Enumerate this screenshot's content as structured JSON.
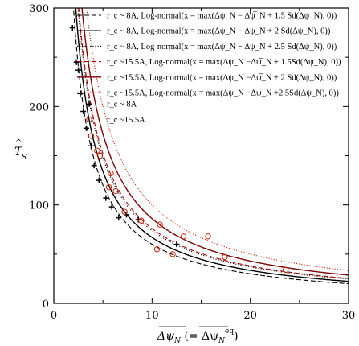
{
  "chart_data": {
    "type": "scatter",
    "xlabel": "Δψ̅_N (= Δψ̅_N^eq)",
    "ylabel": "T̂_S",
    "xlim": [
      0,
      30
    ],
    "ylim": [
      0,
      300
    ],
    "x_ticks": [
      "0",
      "10",
      "20",
      "30"
    ],
    "y_ticks": [
      "0",
      "100",
      "200",
      "300"
    ],
    "grid": false,
    "legend_position": "top-right",
    "curves": [
      {
        "name": "r_c ~ 8A, Log-normal(x = max(Δψ_N − Δψ̅_N + 1.5 Sd(Δψ_N), 0))",
        "color": "#000000",
        "dash": "dash",
        "k": 600
      },
      {
        "name": "r_c ~ 8A, Log-normal(x = max(Δψ_N − Δψ̅_N + 2   Sd(Δψ_N), 0))",
        "color": "#000000",
        "dash": "solid",
        "k": 670
      },
      {
        "name": "r_c ~ 8A, Log-normal(x = max(Δψ_N − Δψ̅_N + 2.5 Sd(Δψ_N), 0))",
        "color": "#000000",
        "dash": "dot",
        "k": 740
      },
      {
        "name": "r_c ~15.5A, Log-normal(x = max(Δψ_N −Δψ̅_N + 1.5Sd(Δψ_N), 0))",
        "color": "#b00000",
        "dash": "dash",
        "k": 760
      },
      {
        "name": "r_c ~15.5A, Log-normal(x = max(Δψ_N −Δψ̅_N + 2 Sd(Δψ_N), 0))",
        "color": "#800000",
        "dash": "solid",
        "k": 860
      },
      {
        "name": "r_c ~15.5A, Log-normal(x = max(Δψ_N −Δψ̅_N +2.5Sd(Δψ_N), 0))",
        "color": "#cc2200",
        "dash": "dot",
        "k": 1000
      }
    ],
    "series": [
      {
        "name": "r_c ~ 8A",
        "marker": "plus",
        "color": "#000000",
        "x": [
          1.9,
          2.3,
          2.5,
          2.7,
          3.0,
          3.3,
          3.8,
          4.1,
          4.6,
          5.3,
          5.9,
          6.6,
          7.4,
          8.6,
          12.5
        ],
        "y": [
          280,
          245,
          237,
          213,
          195,
          178,
          160,
          140,
          125,
          107,
          98,
          87,
          90,
          85,
          60
        ]
      },
      {
        "name": "r_c ~15.5A",
        "marker": "circle",
        "color": "#cc2200",
        "x": [
          3.8,
          4.4,
          4.7,
          5.6,
          5.8,
          6.3,
          7.2,
          8.9,
          10.5,
          10.8,
          12.1,
          13.2,
          15.7,
          17.4,
          23.6
        ],
        "y": [
          170,
          155,
          150,
          118,
          132,
          114,
          93,
          84,
          55,
          80,
          50,
          68,
          68,
          47,
          34
        ]
      }
    ]
  }
}
